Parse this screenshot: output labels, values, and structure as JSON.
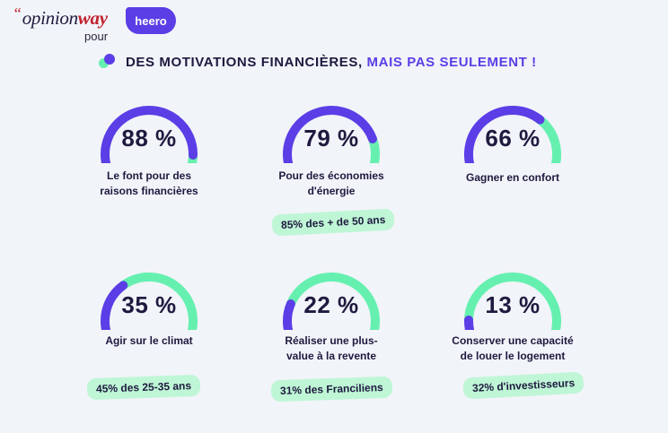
{
  "header": {
    "logo_text_a": "opinion",
    "logo_text_b": "way",
    "logo_quote": "“",
    "pour": "pour",
    "partner": "heero"
  },
  "title": {
    "main": "DES MOTIVATIONS FINANCIÈRES,",
    "accent": "MAIS PAS SEULEMENT !"
  },
  "colors": {
    "purple": "#5b3ee6",
    "green": "#66f0b0",
    "pill": "#bff6d6",
    "text": "#1e1a3f"
  },
  "chart_data": {
    "type": "gauge",
    "series": [
      {
        "label": "Le font pour des raisons financières",
        "value": 88,
        "display": "88 %",
        "note": ""
      },
      {
        "label": "Pour des économies d'énergie",
        "value": 79,
        "display": "79 %",
        "note": "85% des + de 50 ans"
      },
      {
        "label": "Gagner en confort",
        "value": 66,
        "display": "66 %",
        "note": ""
      },
      {
        "label": "Agir sur le climat",
        "value": 35,
        "display": "35 %",
        "note": "45% des 25-35 ans"
      },
      {
        "label": "Réaliser une plus-value à la revente",
        "value": 22,
        "display": "22 %",
        "note": "31% des Franciliens"
      },
      {
        "label": "Conserver une capacité de louer le logement",
        "value": 13,
        "display": "13 %",
        "note": "32% d'investisseurs"
      }
    ]
  },
  "labels": {
    "g0": [
      "Le font pour des",
      "raisons financières"
    ],
    "g1": [
      "Pour des économies",
      "d'énergie"
    ],
    "g2": [
      "Gagner en confort"
    ],
    "g3": [
      "Agir sur le climat"
    ],
    "g4": [
      "Réaliser une plus-",
      "value à la revente"
    ],
    "g5": [
      "Conserver une capacité",
      "de louer le logement"
    ]
  }
}
